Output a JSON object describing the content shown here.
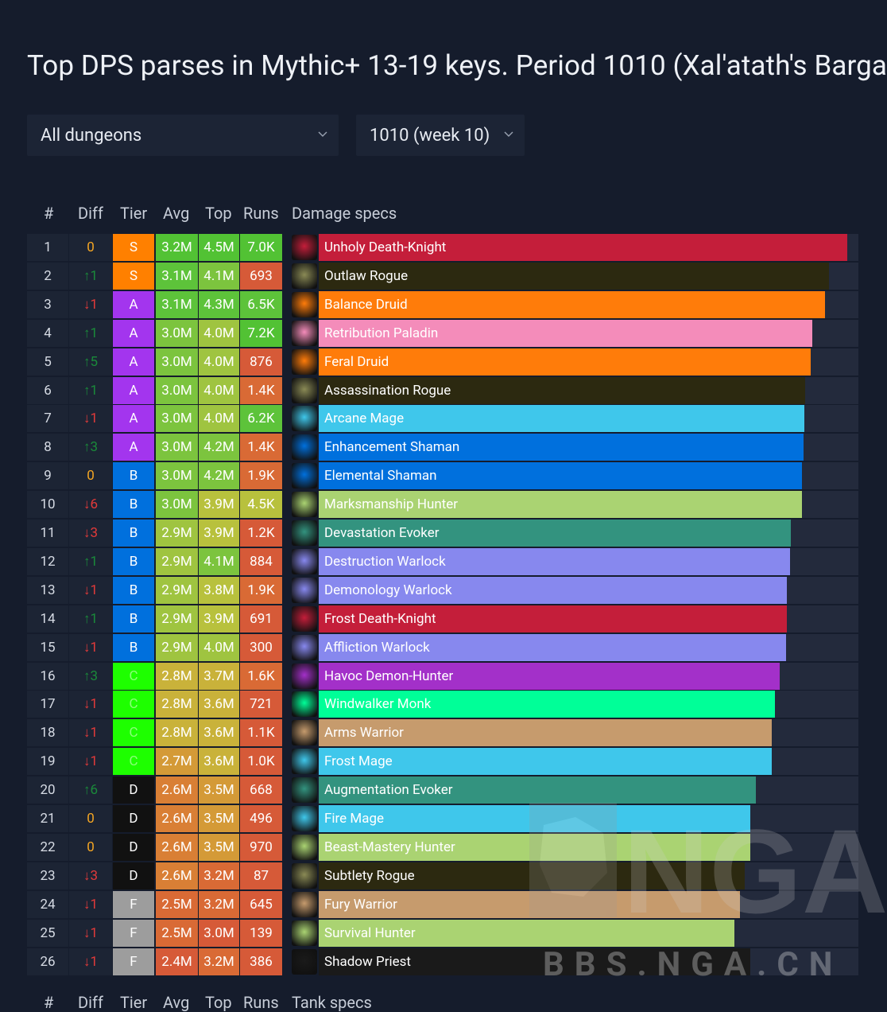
{
  "title": "Top DPS parses in Mythic+ 13-19 keys. Period 1010 (Xal'atath's Barga",
  "filters": {
    "dungeon": "All dungeons",
    "period": "1010 (week 10)"
  },
  "headers": {
    "rank": "#",
    "diff": "Diff",
    "tier": "Tier",
    "avg": "Avg",
    "top": "Top",
    "runs": "Runs",
    "specs": "Damage specs"
  },
  "headers2": {
    "rank": "#",
    "diff": "Diff",
    "tier": "Tier",
    "avg": "Avg",
    "top": "Top",
    "runs": "Runs",
    "specs": "Tank specs"
  },
  "rows": [
    {
      "rank": "1",
      "diff": "0",
      "tier": "S",
      "avg": "3.2M",
      "top": "4.5M",
      "runs": "7.0K",
      "spec": "Unholy Death-Knight",
      "color": "#c41e3a",
      "fill": 0.98,
      "icon": "unholy-dk-icon"
    },
    {
      "rank": "2",
      "diff": "↑1",
      "tier": "S",
      "avg": "3.1M",
      "top": "4.1M",
      "runs": "693",
      "spec": "Outlaw Rogue",
      "color": "#2c2910",
      "fill": 0.945,
      "icon": "outlaw-rogue-icon"
    },
    {
      "rank": "3",
      "diff": "↓1",
      "tier": "A",
      "avg": "3.1M",
      "top": "4.3M",
      "runs": "6.5K",
      "spec": "Balance Druid",
      "color": "#ff7c0a",
      "fill": 0.938,
      "icon": "balance-druid-icon"
    },
    {
      "rank": "4",
      "diff": "↑1",
      "tier": "A",
      "avg": "3.0M",
      "top": "4.0M",
      "runs": "7.2K",
      "spec": "Retribution Paladin",
      "color": "#f48cba",
      "fill": 0.915,
      "icon": "ret-paladin-icon"
    },
    {
      "rank": "5",
      "diff": "↑5",
      "tier": "A",
      "avg": "3.0M",
      "top": "4.0M",
      "runs": "876",
      "spec": "Feral Druid",
      "color": "#ff7c0a",
      "fill": 0.911,
      "icon": "feral-druid-icon"
    },
    {
      "rank": "6",
      "diff": "↑1",
      "tier": "A",
      "avg": "3.0M",
      "top": "4.0M",
      "runs": "1.4K",
      "spec": "Assassination Rogue",
      "color": "#2c2910",
      "fill": 0.902,
      "icon": "assassination-rogue-icon"
    },
    {
      "rank": "7",
      "diff": "↓1",
      "tier": "A",
      "avg": "3.0M",
      "top": "4.0M",
      "runs": "6.2K",
      "spec": "Arcane Mage",
      "color": "#3fc7eb",
      "fill": 0.9,
      "icon": "arcane-mage-icon"
    },
    {
      "rank": "8",
      "diff": "↑3",
      "tier": "A",
      "avg": "3.0M",
      "top": "4.2M",
      "runs": "1.4K",
      "spec": "Enhancement Shaman",
      "color": "#0070dd",
      "fill": 0.898,
      "icon": "enhancement-shaman-icon"
    },
    {
      "rank": "9",
      "diff": "0",
      "tier": "B",
      "avg": "3.0M",
      "top": "4.2M",
      "runs": "1.9K",
      "spec": "Elemental Shaman",
      "color": "#0070dd",
      "fill": 0.896,
      "icon": "elemental-shaman-icon"
    },
    {
      "rank": "10",
      "diff": "↓6",
      "tier": "B",
      "avg": "3.0M",
      "top": "3.9M",
      "runs": "4.5K",
      "spec": "Marksmanship Hunter",
      "color": "#aad372",
      "fill": 0.896,
      "icon": "mm-hunter-icon"
    },
    {
      "rank": "11",
      "diff": "↓3",
      "tier": "B",
      "avg": "2.9M",
      "top": "3.9M",
      "runs": "1.2K",
      "spec": "Devastation Evoker",
      "color": "#33937f",
      "fill": 0.875,
      "icon": "devastation-evoker-icon"
    },
    {
      "rank": "12",
      "diff": "↑1",
      "tier": "B",
      "avg": "2.9M",
      "top": "4.1M",
      "runs": "884",
      "spec": "Destruction Warlock",
      "color": "#8788ee",
      "fill": 0.874,
      "icon": "destruction-warlock-icon"
    },
    {
      "rank": "13",
      "diff": "↓1",
      "tier": "B",
      "avg": "2.9M",
      "top": "3.8M",
      "runs": "1.9K",
      "spec": "Demonology Warlock",
      "color": "#8788ee",
      "fill": 0.868,
      "icon": "demonology-warlock-icon"
    },
    {
      "rank": "14",
      "diff": "↑1",
      "tier": "B",
      "avg": "2.9M",
      "top": "3.9M",
      "runs": "691",
      "spec": "Frost Death-Knight",
      "color": "#c41e3a",
      "fill": 0.868,
      "icon": "frost-dk-icon"
    },
    {
      "rank": "15",
      "diff": "↓1",
      "tier": "B",
      "avg": "2.9M",
      "top": "4.0M",
      "runs": "300",
      "spec": "Affliction Warlock",
      "color": "#8788ee",
      "fill": 0.866,
      "icon": "affliction-warlock-icon"
    },
    {
      "rank": "16",
      "diff": "↑3",
      "tier": "C",
      "avg": "2.8M",
      "top": "3.7M",
      "runs": "1.6K",
      "spec": "Havoc Demon-Hunter",
      "color": "#a330c9",
      "fill": 0.854,
      "icon": "havoc-dh-icon"
    },
    {
      "rank": "17",
      "diff": "↓1",
      "tier": "C",
      "avg": "2.8M",
      "top": "3.6M",
      "runs": "721",
      "spec": "Windwalker Monk",
      "color": "#00ff98",
      "fill": 0.845,
      "icon": "windwalker-monk-icon"
    },
    {
      "rank": "18",
      "diff": "↓1",
      "tier": "C",
      "avg": "2.8M",
      "top": "3.6M",
      "runs": "1.1K",
      "spec": "Arms Warrior",
      "color": "#c69b6d",
      "fill": 0.84,
      "icon": "arms-warrior-icon"
    },
    {
      "rank": "19",
      "diff": "↓1",
      "tier": "C",
      "avg": "2.7M",
      "top": "3.6M",
      "runs": "1.0K",
      "spec": "Frost Mage",
      "color": "#3fc7eb",
      "fill": 0.84,
      "icon": "frost-mage-icon"
    },
    {
      "rank": "20",
      "diff": "↑6",
      "tier": "D",
      "avg": "2.6M",
      "top": "3.5M",
      "runs": "668",
      "spec": "Augmentation Evoker",
      "color": "#33937f",
      "fill": 0.81,
      "icon": "augmentation-evoker-icon"
    },
    {
      "rank": "21",
      "diff": "0",
      "tier": "D",
      "avg": "2.6M",
      "top": "3.5M",
      "runs": "496",
      "spec": "Fire Mage",
      "color": "#3fc7eb",
      "fill": 0.8,
      "icon": "fire-mage-icon"
    },
    {
      "rank": "22",
      "diff": "0",
      "tier": "D",
      "avg": "2.6M",
      "top": "3.5M",
      "runs": "970",
      "spec": "Beast-Mastery Hunter",
      "color": "#aad372",
      "fill": 0.8,
      "icon": "bm-hunter-icon"
    },
    {
      "rank": "23",
      "diff": "↓3",
      "tier": "D",
      "avg": "2.6M",
      "top": "3.2M",
      "runs": "87",
      "spec": "Subtlety Rogue",
      "color": "#2c2910",
      "fill": 0.79,
      "icon": "subtlety-rogue-icon"
    },
    {
      "rank": "24",
      "diff": "↓1",
      "tier": "F",
      "avg": "2.5M",
      "top": "3.2M",
      "runs": "645",
      "spec": "Fury Warrior",
      "color": "#c69b6d",
      "fill": 0.78,
      "icon": "fury-warrior-icon"
    },
    {
      "rank": "25",
      "diff": "↓1",
      "tier": "F",
      "avg": "2.5M",
      "top": "3.0M",
      "runs": "139",
      "spec": "Survival Hunter",
      "color": "#aad372",
      "fill": 0.77,
      "icon": "survival-hunter-icon"
    },
    {
      "rank": "26",
      "diff": "↓1",
      "tier": "F",
      "avg": "2.4M",
      "top": "3.2M",
      "runs": "386",
      "spec": "Shadow Priest",
      "color": "#1a1a1a",
      "fill": 0.8,
      "icon": "shadow-priest-icon"
    }
  ],
  "tier_colors": {
    "S": "#ff8000",
    "A": "#a335ee",
    "B": "#0070dd",
    "C": "#1eff00",
    "D": "#111111",
    "F": "#9d9d9d"
  },
  "diff_colors": {
    "up": "#1a8a3a",
    "down": "#e23a3a",
    "zero": "#f5a623"
  },
  "watermark": {
    "logo": "NGA",
    "text": "BBS.NGA.CN"
  }
}
